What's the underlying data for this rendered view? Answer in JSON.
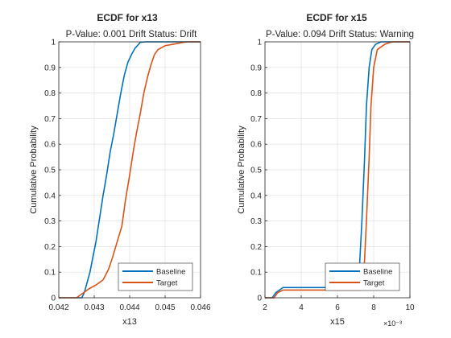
{
  "window": {
    "background": "#ffffff"
  },
  "colors": {
    "baseline": "#0072BD",
    "target": "#D95319",
    "grid": "#DFDFDF",
    "axis": "#262626"
  },
  "chart_data": [
    {
      "type": "line",
      "title": "ECDF for x13",
      "subtitle": "P-Value: 0.001 Drift Status: Drift",
      "xlabel": "x13",
      "ylabel": "Cumulative Probability",
      "xlim": [
        0.042,
        0.046
      ],
      "ylim": [
        0,
        1
      ],
      "xticks": [
        0.042,
        0.043,
        0.044,
        0.045,
        0.046
      ],
      "xtick_labels": [
        "0.042",
        "0.043",
        "0.044",
        "0.045",
        "0.046"
      ],
      "yticks": [
        0,
        0.1,
        0.2,
        0.3,
        0.4,
        0.5,
        0.6,
        0.7,
        0.8,
        0.9,
        1
      ],
      "ytick_labels": [
        "0",
        "0.1",
        "0.2",
        "0.3",
        "0.4",
        "0.5",
        "0.6",
        "0.7",
        "0.8",
        "0.9",
        "1"
      ],
      "exponent_label": "",
      "grid": true,
      "legend": {
        "location": "bottom-right",
        "entries": [
          "Baseline",
          "Target"
        ]
      },
      "series": [
        {
          "name": "Baseline",
          "x": [
            0.042,
            0.04265,
            0.04272,
            0.0428,
            0.04288,
            0.04295,
            0.04305,
            0.04315,
            0.04325,
            0.04335,
            0.04345,
            0.04355,
            0.04365,
            0.04375,
            0.04385,
            0.04395,
            0.04405,
            0.04415,
            0.04425,
            0.0443,
            0.04445,
            0.0446,
            0.046
          ],
          "y": [
            0,
            0,
            0.02,
            0.06,
            0.1,
            0.15,
            0.22,
            0.31,
            0.4,
            0.48,
            0.57,
            0.64,
            0.72,
            0.8,
            0.87,
            0.92,
            0.95,
            0.975,
            0.99,
            0.998,
            1,
            1,
            1
          ]
        },
        {
          "name": "Target",
          "x": [
            0.042,
            0.0425,
            0.04265,
            0.04285,
            0.04305,
            0.04325,
            0.0434,
            0.0435,
            0.04365,
            0.04378,
            0.04388,
            0.044,
            0.0441,
            0.0442,
            0.0443,
            0.0444,
            0.0445,
            0.0446,
            0.0447,
            0.0448,
            0.045,
            0.0452,
            0.0456,
            0.046
          ],
          "y": [
            0,
            0,
            0.015,
            0.035,
            0.05,
            0.07,
            0.11,
            0.15,
            0.22,
            0.28,
            0.38,
            0.48,
            0.57,
            0.65,
            0.72,
            0.8,
            0.86,
            0.91,
            0.95,
            0.97,
            0.985,
            0.99,
            1,
            1
          ]
        }
      ]
    },
    {
      "type": "line",
      "title": "ECDF for x15",
      "subtitle": "P-Value: 0.094 Drift Status: Warning",
      "xlabel": "x15",
      "ylabel": "Cumulative Probability",
      "xlim": [
        2,
        10
      ],
      "ylim": [
        0,
        1
      ],
      "xticks": [
        2,
        4,
        6,
        8,
        10
      ],
      "xtick_labels": [
        "2",
        "4",
        "6",
        "8",
        "10"
      ],
      "yticks": [
        0,
        0.1,
        0.2,
        0.3,
        0.4,
        0.5,
        0.6,
        0.7,
        0.8,
        0.9,
        1
      ],
      "ytick_labels": [
        "0",
        "0.1",
        "0.2",
        "0.3",
        "0.4",
        "0.5",
        "0.6",
        "0.7",
        "0.8",
        "0.9",
        "1"
      ],
      "exponent_label": "×10⁻³",
      "grid": true,
      "legend": {
        "location": "bottom-right",
        "entries": [
          "Baseline",
          "Target"
        ]
      },
      "series": [
        {
          "name": "Baseline",
          "x": [
            2,
            2.4,
            2.6,
            2.8,
            3.0,
            7.0,
            7.2,
            7.35,
            7.5,
            7.6,
            7.75,
            7.9,
            8.1,
            8.4,
            10
          ],
          "y": [
            0,
            0,
            0.02,
            0.03,
            0.04,
            0.04,
            0.1,
            0.3,
            0.55,
            0.75,
            0.9,
            0.97,
            0.99,
            1,
            1
          ]
        },
        {
          "name": "Target",
          "x": [
            2,
            2.5,
            2.7,
            3.0,
            7.3,
            7.45,
            7.6,
            7.75,
            7.85,
            8.0,
            8.2,
            8.6,
            9.0,
            10
          ],
          "y": [
            0,
            0,
            0.02,
            0.03,
            0.03,
            0.08,
            0.3,
            0.55,
            0.75,
            0.9,
            0.97,
            0.99,
            1,
            1
          ]
        }
      ]
    }
  ]
}
